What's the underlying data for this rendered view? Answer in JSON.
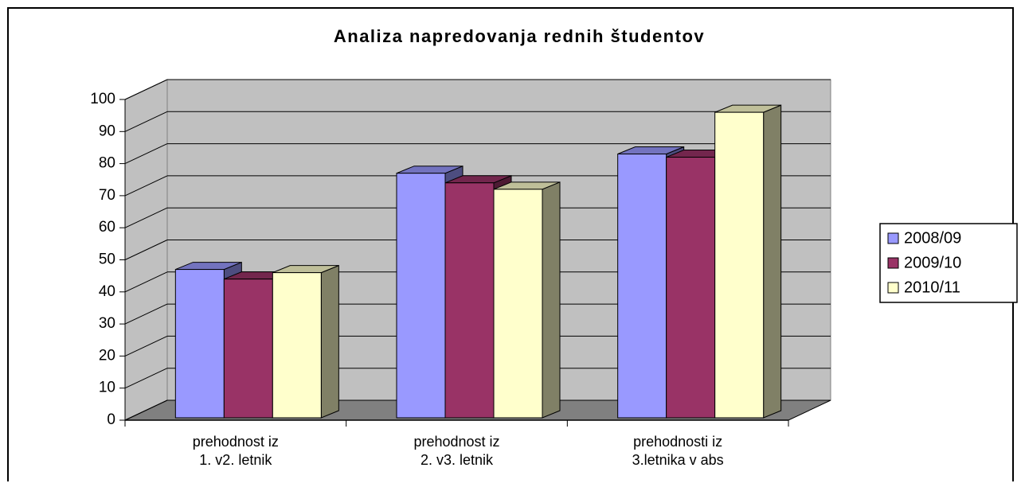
{
  "chart_data": {
    "type": "bar3d",
    "title": "Analiza napredovanja rednih študentov",
    "categories": [
      "prehodnost iz\n1. v2. letnik",
      "prehodnost iz\n2. v3. letnik",
      "prehodnosti iz\n3.letnika v abs"
    ],
    "series": [
      {
        "name": "2008/09",
        "color": "#9999ff",
        "values": [
          47,
          77,
          83
        ]
      },
      {
        "name": "2009/10",
        "color": "#993366",
        "values": [
          44,
          74,
          82
        ]
      },
      {
        "name": "2010/11",
        "color": "#ffffcc",
        "values": [
          46,
          72,
          96
        ]
      }
    ],
    "ylim": [
      0,
      100
    ],
    "yticks": [
      0,
      10,
      20,
      30,
      40,
      50,
      60,
      70,
      80,
      90,
      100
    ],
    "grid": true,
    "legend": "right"
  }
}
